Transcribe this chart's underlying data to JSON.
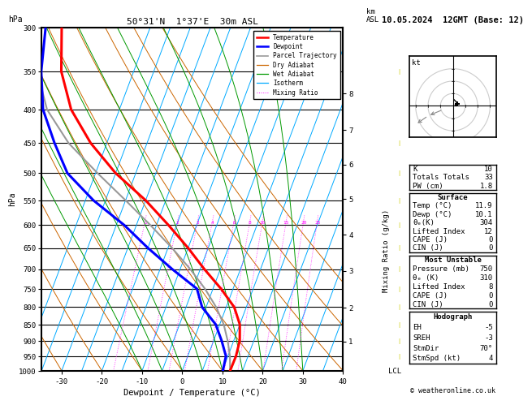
{
  "title_left": "50°31'N  1°37'E  30m ASL",
  "title_right": "10.05.2024  12GMT (Base: 12)",
  "xlabel": "Dewpoint / Temperature (°C)",
  "pressure_levels": [
    300,
    350,
    400,
    450,
    500,
    550,
    600,
    650,
    700,
    750,
    800,
    850,
    900,
    950,
    1000
  ],
  "temp_xlim": [
    -35,
    40
  ],
  "temp_xticks": [
    -30,
    -20,
    -10,
    0,
    10,
    20,
    30,
    40
  ],
  "isotherms_C": [
    -40,
    -35,
    -30,
    -25,
    -20,
    -15,
    -10,
    -5,
    0,
    5,
    10,
    15,
    20,
    25,
    30,
    35,
    40,
    45
  ],
  "dry_adiabats_C": [
    -40,
    -30,
    -20,
    -10,
    0,
    10,
    20,
    30,
    40,
    50,
    60
  ],
  "wet_adiabats_C": [
    -10,
    -5,
    0,
    5,
    10,
    15,
    20,
    25,
    30
  ],
  "mixing_ratios": [
    1,
    2,
    3,
    4,
    6,
    8,
    10,
    15,
    20,
    25
  ],
  "p_min": 300,
  "p_max": 1000,
  "skew_factor": 32,
  "temperature_profile_T": [
    11.9,
    12.0,
    11.5,
    10.0,
    7.0,
    2.0,
    -4.0,
    -10.0,
    -17.0,
    -25.0,
    -35.0,
    -44.0,
    -52.0,
    -58.0,
    -62.0
  ],
  "temperature_profile_P": [
    1000,
    950,
    900,
    850,
    800,
    750,
    700,
    650,
    600,
    550,
    500,
    450,
    400,
    350,
    300
  ],
  "dewpoint_profile_T": [
    10.1,
    9.5,
    7.0,
    4.0,
    -1.0,
    -4.0,
    -12.0,
    -20.0,
    -28.0,
    -38.0,
    -47.0,
    -53.0,
    -59.0,
    -63.0,
    -66.0
  ],
  "dewpoint_profile_P": [
    1000,
    950,
    900,
    850,
    800,
    750,
    700,
    650,
    600,
    550,
    500,
    450,
    400,
    350,
    300
  ],
  "parcel_trajectory_T": [
    11.9,
    10.5,
    8.5,
    6.0,
    2.5,
    -2.0,
    -7.5,
    -14.0,
    -21.5,
    -30.0,
    -39.5,
    -49.5,
    -58.0,
    -64.0,
    -68.0
  ],
  "parcel_trajectory_P": [
    1000,
    950,
    900,
    850,
    800,
    750,
    700,
    650,
    600,
    550,
    500,
    450,
    400,
    350,
    300
  ],
  "temp_color": "#ff0000",
  "dewp_color": "#0000ff",
  "parcel_color": "#999999",
  "dry_adiabat_color": "#cc6600",
  "wet_adiabat_color": "#009900",
  "isotherm_color": "#00aaff",
  "mixing_ratio_color": "#ff00ff",
  "km_labels": [
    "1",
    "2",
    "3",
    "4",
    "5",
    "6",
    "7",
    "8"
  ],
  "km_pressures": [
    902,
    802,
    704,
    620,
    547,
    485,
    430,
    378
  ],
  "stats_K": "10",
  "stats_TT": "33",
  "stats_PW": "1.8",
  "surf_temp": "11.9",
  "surf_dewp": "10.1",
  "surf_thetae": "304",
  "surf_li": "12",
  "surf_cape": "0",
  "surf_cin": "0",
  "mu_pres": "750",
  "mu_thetae": "310",
  "mu_li": "8",
  "mu_cape": "0",
  "mu_cin": "0",
  "hodo_eh": "-5",
  "hodo_sreh": "-3",
  "hodo_stmdir": "70°",
  "hodo_stmspd": "4",
  "copyright": "© weatheronline.co.uk"
}
